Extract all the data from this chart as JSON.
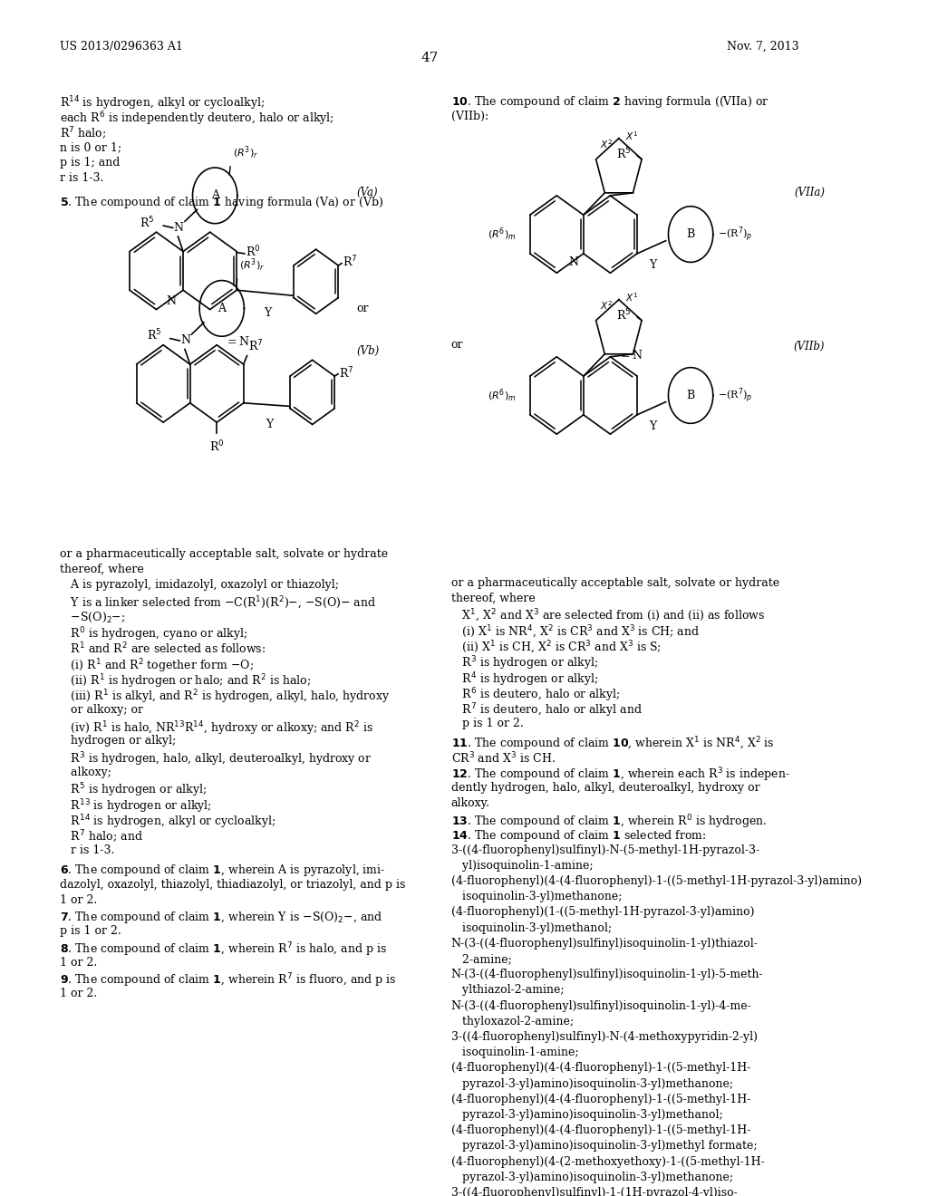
{
  "background_color": "#ffffff",
  "header_left": "US 2013/0296363 A1",
  "header_right": "Nov. 7, 2013",
  "page_number": "47"
}
